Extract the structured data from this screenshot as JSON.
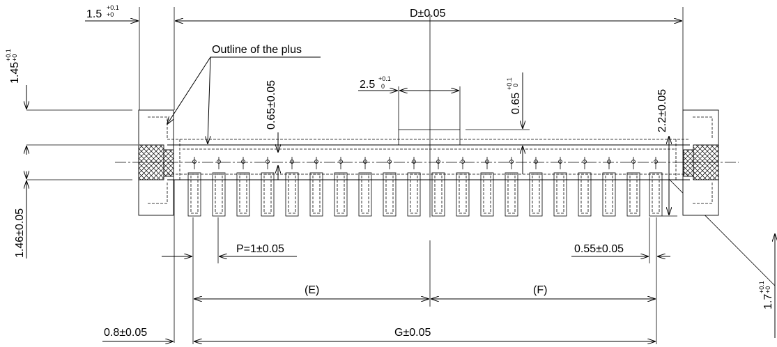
{
  "dimensions": {
    "left_margin": {
      "value": "1.5",
      "tol_upper": "+0.1",
      "tol_lower": "+0"
    },
    "overall_width": "D±0.05",
    "top_height": {
      "value": "1.45",
      "tol_upper": "+0.1",
      "tol_lower": "+0"
    },
    "outline_label": "Outline of the plus",
    "inner_offset": "0.65±0.05",
    "boss_width": {
      "value": "2.5",
      "tol_upper": "+0.1",
      "tol_lower": "0"
    },
    "boss_offset": {
      "value": "0.65",
      "tol_upper": "+0.1",
      "tol_lower": "0"
    },
    "right_height": "2.2±0.05",
    "bottom_height": "1.46±0.05",
    "pitch": "P=1±0.05",
    "contact_width": "0.55±0.05",
    "span_e": "(E)",
    "span_f": "(F)",
    "left_offset": "0.8±0.05",
    "span_g": "G±0.05",
    "right_slant": {
      "value": "1.7",
      "tol_upper": "+0.1",
      "tol_lower": "+0"
    }
  },
  "contact_count": 20
}
